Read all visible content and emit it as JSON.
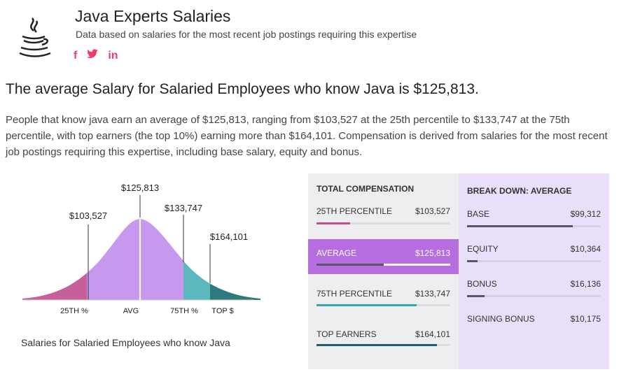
{
  "header": {
    "title": "Java Experts Salaries",
    "subtitle": "Data based on salaries for the most recent job postings requiring this expertise",
    "social": [
      "f",
      "t",
      "in"
    ]
  },
  "headline": "The average Salary for Salaried Employees who know Java is $125,813.",
  "description": "People that know java earn an average of $125,813, ranging from $103,527 at the 25th percentile to $133,747 at the 75th percentile, with top earners (the top 10%) earning more than $164,101. Compensation is derived from salaries for the most recent job postings requiring this expertise, including base salary, equity and bonus.",
  "curve": {
    "caption": "Salaries for Salaried Employees who know Java",
    "markers": [
      {
        "value": "$103,527",
        "axis_label": "25TH %"
      },
      {
        "value": "$125,813",
        "axis_label": "AVG"
      },
      {
        "value": "$133,747",
        "axis_label": "75TH %"
      },
      {
        "value": "$164,101",
        "axis_label": "TOP $"
      }
    ],
    "colors": {
      "low": "#c75f9b",
      "mid": "#c699ee",
      "upper": "#5bb8bf",
      "top": "#2e7a7d"
    }
  },
  "total_compensation": {
    "heading": "TOTAL COMPENSATION",
    "rows": [
      {
        "label": "25TH PERCENTILE",
        "value": "$103,527",
        "fraction": 0.25,
        "color": "#c44d8e",
        "active": false
      },
      {
        "label": "AVERAGE",
        "value": "$125,813",
        "fraction": 0.5,
        "color": "#55566e",
        "active": true
      },
      {
        "label": "75TH PERCENTILE",
        "value": "$133,747",
        "fraction": 0.75,
        "color": "#3aa5ab",
        "active": false
      },
      {
        "label": "TOP EARNERS",
        "value": "$164,101",
        "fraction": 0.9,
        "color": "#1f5e6b",
        "active": false
      }
    ]
  },
  "breakdown": {
    "heading": "BREAK DOWN: AVERAGE",
    "rows": [
      {
        "label": "BASE",
        "value": "$99,312",
        "fraction": 0.79
      },
      {
        "label": "EQUITY",
        "value": "$10,364",
        "fraction": 0.08
      },
      {
        "label": "BONUS",
        "value": "$16,136",
        "fraction": 0.13
      },
      {
        "label": "SIGNING BONUS",
        "value": "$10,175",
        "fraction": 0
      }
    ]
  }
}
